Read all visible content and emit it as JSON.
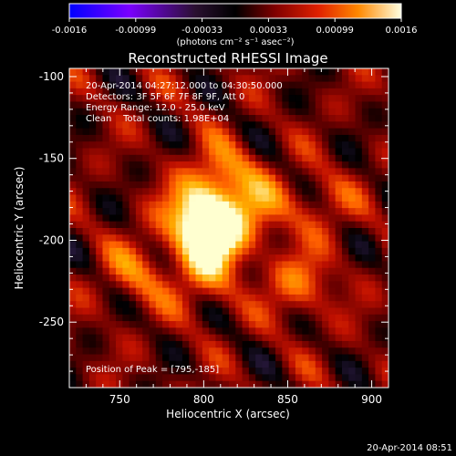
{
  "chart_data": {
    "type": "heatmap",
    "title": "Reconstructed RHESSI Image",
    "xlabel": "Heliocentric X (arcsec)",
    "ylabel": "Heliocentric Y (arcsec)",
    "xlim": [
      720,
      910
    ],
    "ylim": [
      -290,
      -95
    ],
    "x_ticks": [
      750,
      800,
      850,
      900
    ],
    "y_ticks": [
      -100,
      -150,
      -200,
      -250
    ],
    "annotations": [
      "20-Apr-2014 04:27:12.000 to 04:30:50.000",
      "Detectors: 3F 5F 6F 7F 8F 9F, Att 0",
      "Energy Range: 12.0 - 25.0 keV",
      "Clean    Total counts: 1.98E+04"
    ],
    "peak_label": "Position of Peak = [795,-185]",
    "peak": [
      795,
      -185
    ],
    "colorbar": {
      "ticks": [
        "-0.0016",
        "-0.00099",
        "-0.00033",
        "0.00033",
        "0.00099",
        "0.0016"
      ],
      "unit_label": "(photons cm⁻² s⁻¹ asec⁻²)",
      "range": [
        -0.0016,
        0.0016
      ]
    },
    "sources": [
      {
        "x": 797,
        "y": -185,
        "intensity": 0.0016
      },
      {
        "x": 807,
        "y": -200,
        "intensity": 0.0014
      },
      {
        "x": 812,
        "y": -160,
        "intensity": 0.0009
      },
      {
        "x": 833,
        "y": -180,
        "intensity": 0.0007
      },
      {
        "x": 857,
        "y": -227,
        "intensity": 0.0008
      },
      {
        "x": 760,
        "y": -220,
        "intensity": 0.0007
      },
      {
        "x": 800,
        "y": -225,
        "intensity": 0.0006
      },
      {
        "x": 870,
        "y": -178,
        "intensity": 0.0005
      }
    ]
  },
  "timestamp": "20-Apr-2014 08:51",
  "colors": {
    "background": "#000000",
    "colormap": [
      "#0000ff",
      "#6a00ff",
      "#2a1a40",
      "#000000",
      "#6a0000",
      "#c01000",
      "#ff6000",
      "#ffb000",
      "#ffffd0"
    ]
  }
}
